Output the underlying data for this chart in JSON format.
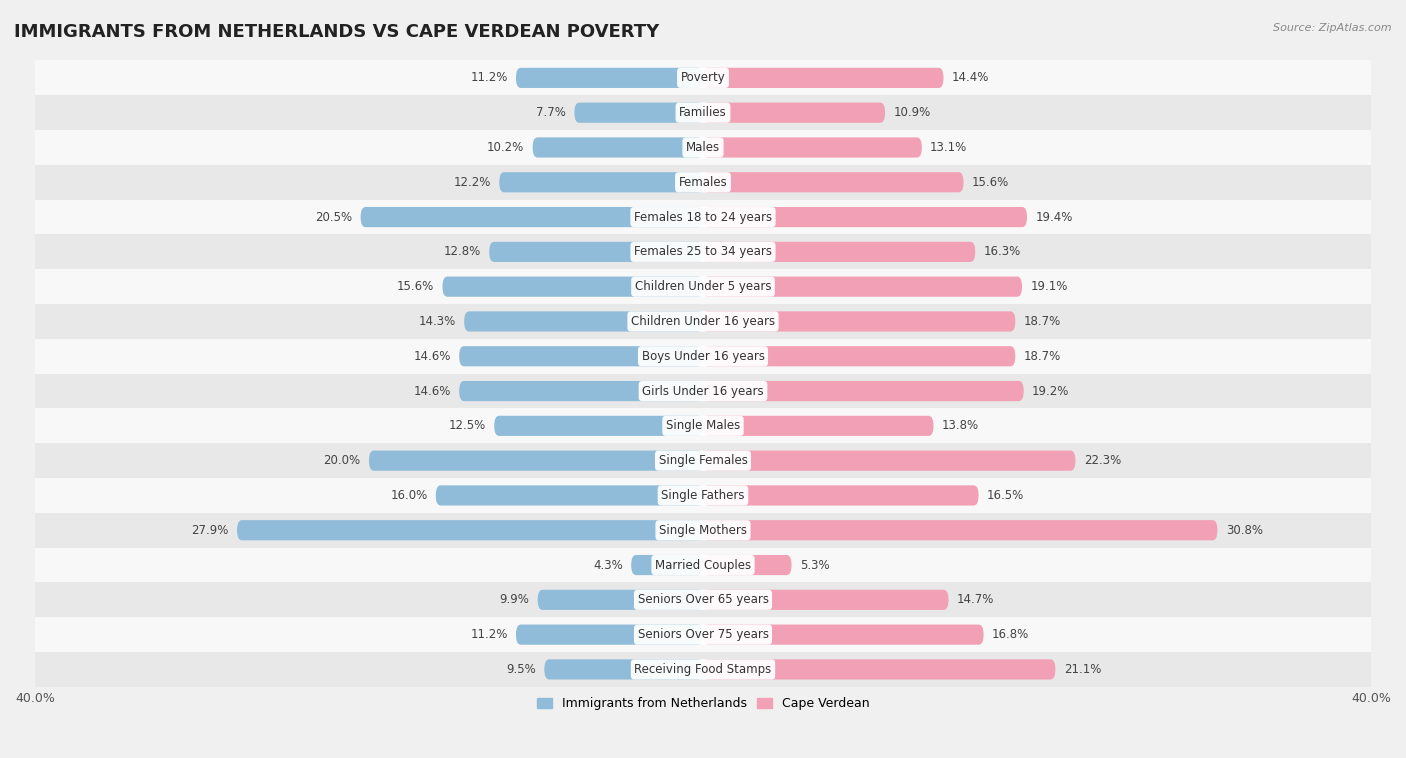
{
  "title": "IMMIGRANTS FROM NETHERLANDS VS CAPE VERDEAN POVERTY",
  "source": "Source: ZipAtlas.com",
  "categories": [
    "Poverty",
    "Families",
    "Males",
    "Females",
    "Females 18 to 24 years",
    "Females 25 to 34 years",
    "Children Under 5 years",
    "Children Under 16 years",
    "Boys Under 16 years",
    "Girls Under 16 years",
    "Single Males",
    "Single Females",
    "Single Fathers",
    "Single Mothers",
    "Married Couples",
    "Seniors Over 65 years",
    "Seniors Over 75 years",
    "Receiving Food Stamps"
  ],
  "netherlands_values": [
    11.2,
    7.7,
    10.2,
    12.2,
    20.5,
    12.8,
    15.6,
    14.3,
    14.6,
    14.6,
    12.5,
    20.0,
    16.0,
    27.9,
    4.3,
    9.9,
    11.2,
    9.5
  ],
  "capeverdean_values": [
    14.4,
    10.9,
    13.1,
    15.6,
    19.4,
    16.3,
    19.1,
    18.7,
    18.7,
    19.2,
    13.8,
    22.3,
    16.5,
    30.8,
    5.3,
    14.7,
    16.8,
    21.1
  ],
  "netherlands_color": "#90bcd9",
  "capeverdean_color": "#f2a0b5",
  "netherlands_label": "Immigrants from Netherlands",
  "capeverdean_label": "Cape Verdean",
  "xlim": 40.0,
  "background_color": "#f0f0f0",
  "row_light_color": "#f8f8f8",
  "row_dark_color": "#e8e8e8",
  "bar_height": 0.58,
  "title_fontsize": 13,
  "label_fontsize": 8.5,
  "value_fontsize": 8.5,
  "axis_label_fontsize": 9
}
